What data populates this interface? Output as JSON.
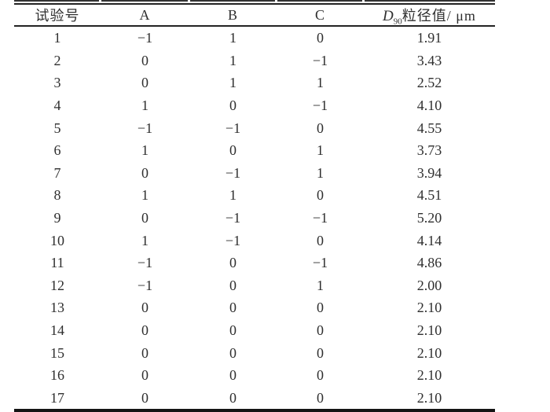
{
  "colors": {
    "text": "#2f2f2f",
    "rule": "#232323",
    "bottom_rule": "#141414",
    "background": "#ffffff"
  },
  "table": {
    "header": {
      "no": "试验号",
      "a": "A",
      "b": "B",
      "c": "C",
      "d90": {
        "base": "D",
        "sub": "90",
        "rest": "粒径值/ μm"
      }
    },
    "rows": [
      {
        "no": "1",
        "a": "−1",
        "b": "1",
        "c": "0",
        "d90": "1.91"
      },
      {
        "no": "2",
        "a": "0",
        "b": "1",
        "c": "−1",
        "d90": "3.43"
      },
      {
        "no": "3",
        "a": "0",
        "b": "1",
        "c": "1",
        "d90": "2.52"
      },
      {
        "no": "4",
        "a": "1",
        "b": "0",
        "c": "−1",
        "d90": "4.10"
      },
      {
        "no": "5",
        "a": "−1",
        "b": "−1",
        "c": "0",
        "d90": "4.55"
      },
      {
        "no": "6",
        "a": "1",
        "b": "0",
        "c": "1",
        "d90": "3.73"
      },
      {
        "no": "7",
        "a": "0",
        "b": "−1",
        "c": "1",
        "d90": "3.94"
      },
      {
        "no": "8",
        "a": "1",
        "b": "1",
        "c": "0",
        "d90": "4.51"
      },
      {
        "no": "9",
        "a": "0",
        "b": "−1",
        "c": "−1",
        "d90": "5.20"
      },
      {
        "no": "10",
        "a": "1",
        "b": "−1",
        "c": "0",
        "d90": "4.14"
      },
      {
        "no": "11",
        "a": "−1",
        "b": "0",
        "c": "−1",
        "d90": "4.86"
      },
      {
        "no": "12",
        "a": "−1",
        "b": "0",
        "c": "1",
        "d90": "2.00"
      },
      {
        "no": "13",
        "a": "0",
        "b": "0",
        "c": "0",
        "d90": "2.10"
      },
      {
        "no": "14",
        "a": "0",
        "b": "0",
        "c": "0",
        "d90": "2.10"
      },
      {
        "no": "15",
        "a": "0",
        "b": "0",
        "c": "0",
        "d90": "2.10"
      },
      {
        "no": "16",
        "a": "0",
        "b": "0",
        "c": "0",
        "d90": "2.10"
      },
      {
        "no": "17",
        "a": "0",
        "b": "0",
        "c": "0",
        "d90": "2.10"
      }
    ]
  },
  "chart_data": {
    "type": "table",
    "title": "",
    "columns": [
      "试验号",
      "A",
      "B",
      "C",
      "D90粒径值/μm"
    ],
    "rows": [
      [
        1,
        -1,
        1,
        0,
        1.91
      ],
      [
        2,
        0,
        1,
        -1,
        3.43
      ],
      [
        3,
        0,
        1,
        1,
        2.52
      ],
      [
        4,
        1,
        0,
        -1,
        4.1
      ],
      [
        5,
        -1,
        -1,
        0,
        4.55
      ],
      [
        6,
        1,
        0,
        1,
        3.73
      ],
      [
        7,
        0,
        -1,
        1,
        3.94
      ],
      [
        8,
        1,
        1,
        0,
        4.51
      ],
      [
        9,
        0,
        -1,
        -1,
        5.2
      ],
      [
        10,
        1,
        -1,
        0,
        4.14
      ],
      [
        11,
        -1,
        0,
        -1,
        4.86
      ],
      [
        12,
        -1,
        0,
        1,
        2.0
      ],
      [
        13,
        0,
        0,
        0,
        2.1
      ],
      [
        14,
        0,
        0,
        0,
        2.1
      ],
      [
        15,
        0,
        0,
        0,
        2.1
      ],
      [
        16,
        0,
        0,
        0,
        2.1
      ],
      [
        17,
        0,
        0,
        0,
        2.1
      ]
    ]
  }
}
